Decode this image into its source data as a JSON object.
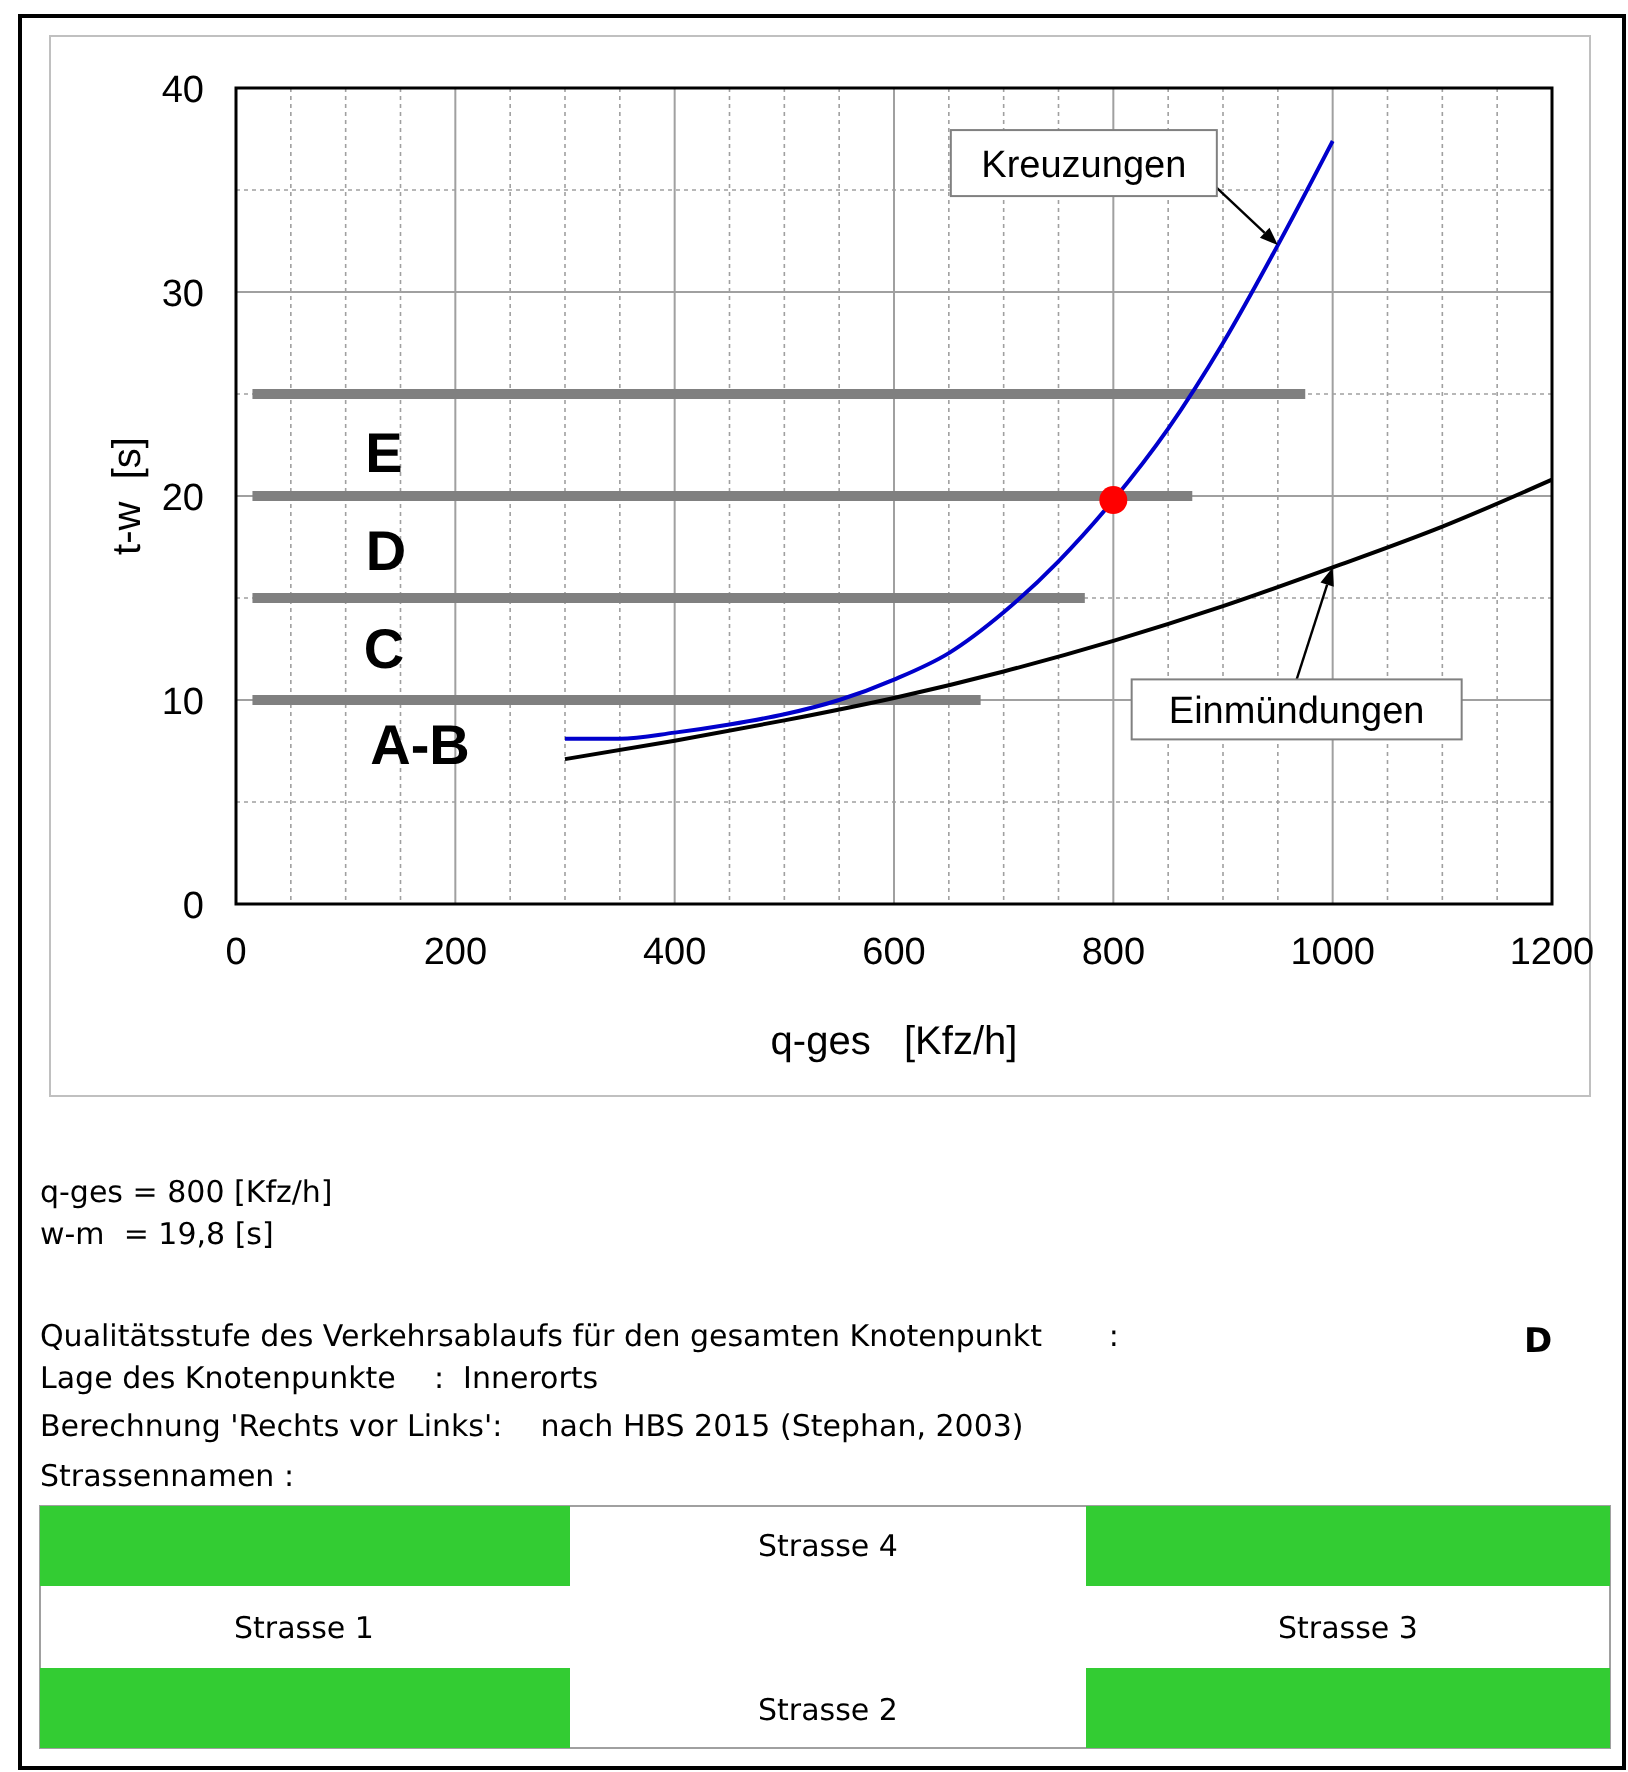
{
  "chart_data": {
    "type": "line",
    "xlabel": "q-ges   [Kfz/h]",
    "ylabel": "t-w  [s]",
    "xlim": [
      0,
      1200
    ],
    "ylim": [
      0,
      40
    ],
    "xticks": [
      0,
      {
        "value": 50,
        "label": null
      },
      {
        "value": 100,
        "label": null
      },
      {
        "value": 150,
        "label": null
      },
      200,
      {
        "value": 250,
        "label": null
      },
      {
        "value": 300,
        "label": null
      },
      {
        "value": 350,
        "label": null
      },
      400,
      {
        "value": 450,
        "label": null
      },
      {
        "value": 500,
        "label": null
      },
      {
        "value": 550,
        "label": null
      },
      600,
      {
        "value": 650,
        "label": null
      },
      {
        "value": 700,
        "label": null
      },
      {
        "value": 750,
        "label": null
      },
      800,
      {
        "value": 850,
        "label": null
      },
      {
        "value": 900,
        "label": null
      },
      {
        "value": 950,
        "label": null
      },
      1000,
      {
        "value": 1050,
        "label": null
      },
      {
        "value": 1100,
        "label": null
      },
      {
        "value": 1150,
        "label": null
      },
      1200
    ],
    "yticks": [
      0,
      {
        "value": 5,
        "label": null
      },
      10,
      {
        "value": 15,
        "label": null
      },
      20,
      {
        "value": 25,
        "label": null
      },
      30,
      {
        "value": 35,
        "label": null
      },
      40
    ],
    "grid": true,
    "series": [
      {
        "color": "#808080",
        "x": [
          15,
          975
        ],
        "values": [
          25,
          25
        ]
      },
      {
        "color": "#808080",
        "x": [
          15,
          872
        ],
        "values": [
          20,
          20
        ]
      },
      {
        "color": "#808080",
        "x": [
          15,
          774
        ],
        "values": [
          15,
          15
        ]
      },
      {
        "color": "#808080",
        "x": [
          15,
          679
        ],
        "values": [
          10,
          10
        ]
      },
      {
        "name": "Kreuzungen",
        "color": "#0000cc",
        "x": [
          300,
          350,
          400,
          450,
          500,
          550,
          600,
          650,
          700,
          750,
          800,
          850,
          900,
          950,
          1000
        ],
        "values": [
          8.1,
          8.1,
          8.4,
          8.8,
          9.3,
          10.0,
          11.0,
          12.3,
          14.3,
          16.8,
          19.8,
          23.3,
          27.5,
          32.3,
          37.4
        ]
      },
      {
        "name": "Einmündungen",
        "color": "#000000",
        "x": [
          300,
          400,
          500,
          600,
          700,
          800,
          900,
          1000,
          1100,
          1200
        ],
        "values": [
          7.1,
          8.0,
          9.0,
          10.1,
          11.4,
          12.9,
          14.6,
          16.5,
          18.5,
          20.8
        ]
      },
      {
        "type": "scatter",
        "marker": "circle",
        "color": "#ff0000",
        "x": [
          800
        ],
        "values": [
          19.8
        ]
      }
    ],
    "annotations": [
      "E",
      "D",
      "C",
      "A-B",
      "q-ges = 800 [Kfz/h]",
      "w-m  = 19,8 [s]",
      "Qualitätsstufe des Verkehrsablaufs für den gesamten Knotenpunkt       :",
      "D",
      "Lage des Knotenpunkte    :  Innerorts",
      "Berechnung 'Rechts vor Links':    nach HBS 2015 (Stephan, 2003)",
      "Strassennamen :",
      "Strasse 4",
      "Strasse 1",
      "Strasse 3",
      "Strasse 2"
    ]
  }
}
